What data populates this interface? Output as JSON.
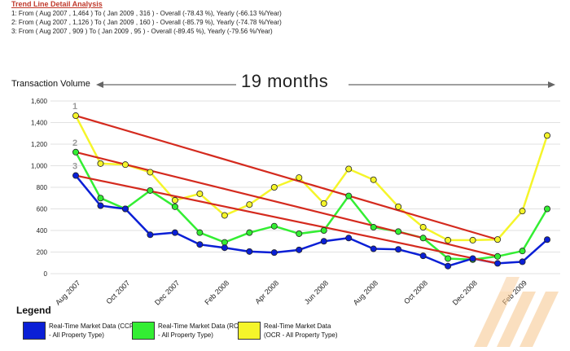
{
  "header": {
    "title": "Trend Line Detail Analysis",
    "lines": [
      "1: From ( Aug 2007 , 1,464 ) To ( Jan 2009 , 316 ) - Overall (-78.43 %), Yearly (-66.13 %/Year)",
      "2: From ( Aug 2007 , 1,126 ) To ( Jan 2009 , 160 ) - Overall (-85.79 %), Yearly (-74.78 %/Year)",
      "3: From ( Aug 2007 , 909 ) To ( Jan 2009 , 95 ) - Overall (-89.45 %), Yearly (-79.56 %/Year)"
    ]
  },
  "annotation": {
    "span_label": "19 months"
  },
  "legend": {
    "title": "Legend",
    "items": [
      {
        "label": "Real-Time Market Data (CCR - All Property Type)",
        "color": "#0a1fd6"
      },
      {
        "label": "Real-Time Market Data (RCR - All Property Type)",
        "color": "#33ee33"
      },
      {
        "label": "Real-Time Market Data (OCR - All Property Type)",
        "color": "#f5f52a"
      }
    ]
  },
  "chart_data": {
    "type": "line",
    "ylabel": "Transaction Volume",
    "ylim": [
      0,
      1600
    ],
    "yticks": [
      0,
      200,
      400,
      600,
      800,
      1000,
      1200,
      1400,
      1600
    ],
    "ytick_labels": [
      "0",
      "200",
      "400",
      "600",
      "800",
      "1,000",
      "1,200",
      "1,400",
      "1,600"
    ],
    "grid": "horizontal",
    "x": [
      "Aug 2007",
      "Sep 2007",
      "Oct 2007",
      "Nov 2007",
      "Dec 2007",
      "Jan 2008",
      "Feb 2008",
      "Mar 2008",
      "Apr 2008",
      "May 2008",
      "Jun 2008",
      "Jul 2008",
      "Aug 2008",
      "Sep 2008",
      "Oct 2008",
      "Nov 2008",
      "Dec 2008",
      "Jan 2009",
      "Feb 2009",
      "Mar 2009"
    ],
    "xtick_labels": [
      "Aug 2007",
      "Oct 2007",
      "Dec 2007",
      "Feb 2008",
      "Apr 2008",
      "Jun 2008",
      "Aug 2008",
      "Oct 2008",
      "Dec 2008",
      "Feb 2009"
    ],
    "series": [
      {
        "name": "Real-Time Market Data (CCR - All Property Type)",
        "color": "#0a1fd6",
        "values": [
          909,
          630,
          600,
          360,
          380,
          270,
          240,
          205,
          195,
          220,
          300,
          330,
          230,
          225,
          165,
          70,
          140,
          95,
          110,
          315
        ]
      },
      {
        "name": "Real-Time Market Data (RCR - All Property Type)",
        "color": "#33ee33",
        "values": [
          1126,
          700,
          600,
          770,
          620,
          380,
          290,
          380,
          440,
          370,
          400,
          720,
          430,
          390,
          330,
          140,
          130,
          160,
          210,
          600
        ]
      },
      {
        "name": "Real-Time Market Data (OCR - All Property Type)",
        "color": "#f5f52a",
        "values": [
          1464,
          1020,
          1010,
          940,
          680,
          740,
          540,
          640,
          800,
          890,
          650,
          970,
          870,
          620,
          430,
          310,
          310,
          316,
          580,
          1280
        ]
      }
    ],
    "trend_lines": [
      {
        "label": "1",
        "from": [
          "Aug 2007",
          1464
        ],
        "to": [
          "Jan 2009",
          316
        ],
        "color": "#d42a1e"
      },
      {
        "label": "2",
        "from": [
          "Aug 2007",
          1126
        ],
        "to": [
          "Jan 2009",
          160
        ],
        "color": "#d42a1e"
      },
      {
        "label": "3",
        "from": [
          "Aug 2007",
          909
        ],
        "to": [
          "Jan 2009",
          95
        ],
        "color": "#d42a1e"
      }
    ]
  }
}
